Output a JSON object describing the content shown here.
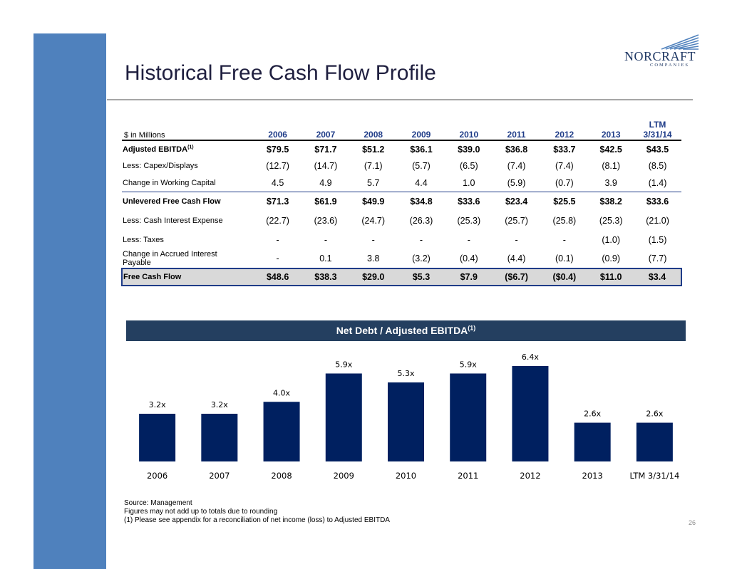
{
  "slide": {
    "title": "Historical Free Cash Flow Profile",
    "page_number": "26"
  },
  "logo": {
    "name": "NORCRAFT",
    "sub": "COMPANIES"
  },
  "table": {
    "unit_label": "$ in Millions",
    "columns": [
      "2006",
      "2007",
      "2008",
      "2009",
      "2010",
      "2011",
      "2012",
      "2013"
    ],
    "ltm_top": "LTM",
    "ltm_bottom": "3/31/14",
    "rows": [
      {
        "label": "Adjusted EBITDA",
        "footnote": "(1)",
        "values": [
          "$79.5",
          "$71.7",
          "$51.2",
          "$36.1",
          "$39.0",
          "$36.8",
          "$33.7",
          "$42.5",
          "$43.5"
        ]
      },
      {
        "label": "Less: Capex/Displays",
        "values": [
          "(12.7)",
          "(14.7)",
          "(7.1)",
          "(5.7)",
          "(6.5)",
          "(7.4)",
          "(7.4)",
          "(8.1)",
          "(8.5)"
        ]
      },
      {
        "label": "Change in Working Capital",
        "values": [
          "4.5",
          "4.9",
          "5.7",
          "4.4",
          "1.0",
          "(5.9)",
          "(0.7)",
          "3.9",
          "(1.4)"
        ]
      },
      {
        "label": "Unlevered Free Cash Flow",
        "values": [
          "$71.3",
          "$61.9",
          "$49.9",
          "$34.8",
          "$33.6",
          "$23.4",
          "$25.5",
          "$38.2",
          "$33.6"
        ]
      },
      {
        "label": "Less: Cash Interest Expense",
        "values": [
          "(22.7)",
          "(23.6)",
          "(24.7)",
          "(26.3)",
          "(25.3)",
          "(25.7)",
          "(25.8)",
          "(25.3)",
          "(21.0)"
        ]
      },
      {
        "label": "Less: Taxes",
        "values": [
          "-",
          "-",
          "-",
          "-",
          "-",
          "-",
          "-",
          "(1.0)",
          "(1.5)"
        ]
      },
      {
        "label_line1": "Change in Accrued Interest",
        "label_line2": "Payable",
        "values": [
          "-",
          "0.1",
          "3.8",
          "(3.2)",
          "(0.4)",
          "(4.4)",
          "(0.1)",
          "(0.9)",
          "(7.7)"
        ]
      },
      {
        "label": "Free Cash Flow",
        "values": [
          "$48.6",
          "$38.3",
          "$29.0",
          "$5.3",
          "$7.9",
          "($6.7)",
          "($0.4)",
          "$11.0",
          "$3.4"
        ]
      }
    ]
  },
  "chart_title": {
    "text": "Net Debt / Adjusted EBITDA",
    "footnote": "(1)"
  },
  "chart_data": {
    "type": "bar",
    "title": "Net Debt / Adjusted EBITDA(1)",
    "categories": [
      "2006",
      "2007",
      "2008",
      "2009",
      "2010",
      "2011",
      "2012",
      "2013",
      "LTM 3/31/14"
    ],
    "values": [
      3.2,
      3.2,
      4.0,
      5.9,
      5.3,
      5.9,
      6.4,
      2.6,
      2.6
    ],
    "data_labels": [
      "3.2x",
      "3.2x",
      "4.0x",
      "5.9x",
      "5.3x",
      "5.9x",
      "6.4x",
      "2.6x",
      "2.6x"
    ],
    "xlabel": "",
    "ylabel": "",
    "ylim": [
      0,
      6.4
    ],
    "bar_color": "#002060",
    "grid": false
  },
  "notes": {
    "line1": "Source: Management",
    "line2": "Figures may not add up to totals due to rounding",
    "line3": "(1)   Please see appendix for a reconciliation of net income (loss) to Adjusted EBITDA"
  },
  "colors": {
    "sidebar": "#4f81bd",
    "header_text": "#1f3c88",
    "chart_title_bg": "#243f60",
    "bar": "#002060",
    "fcf_row_bg": "#d9d9d9"
  }
}
